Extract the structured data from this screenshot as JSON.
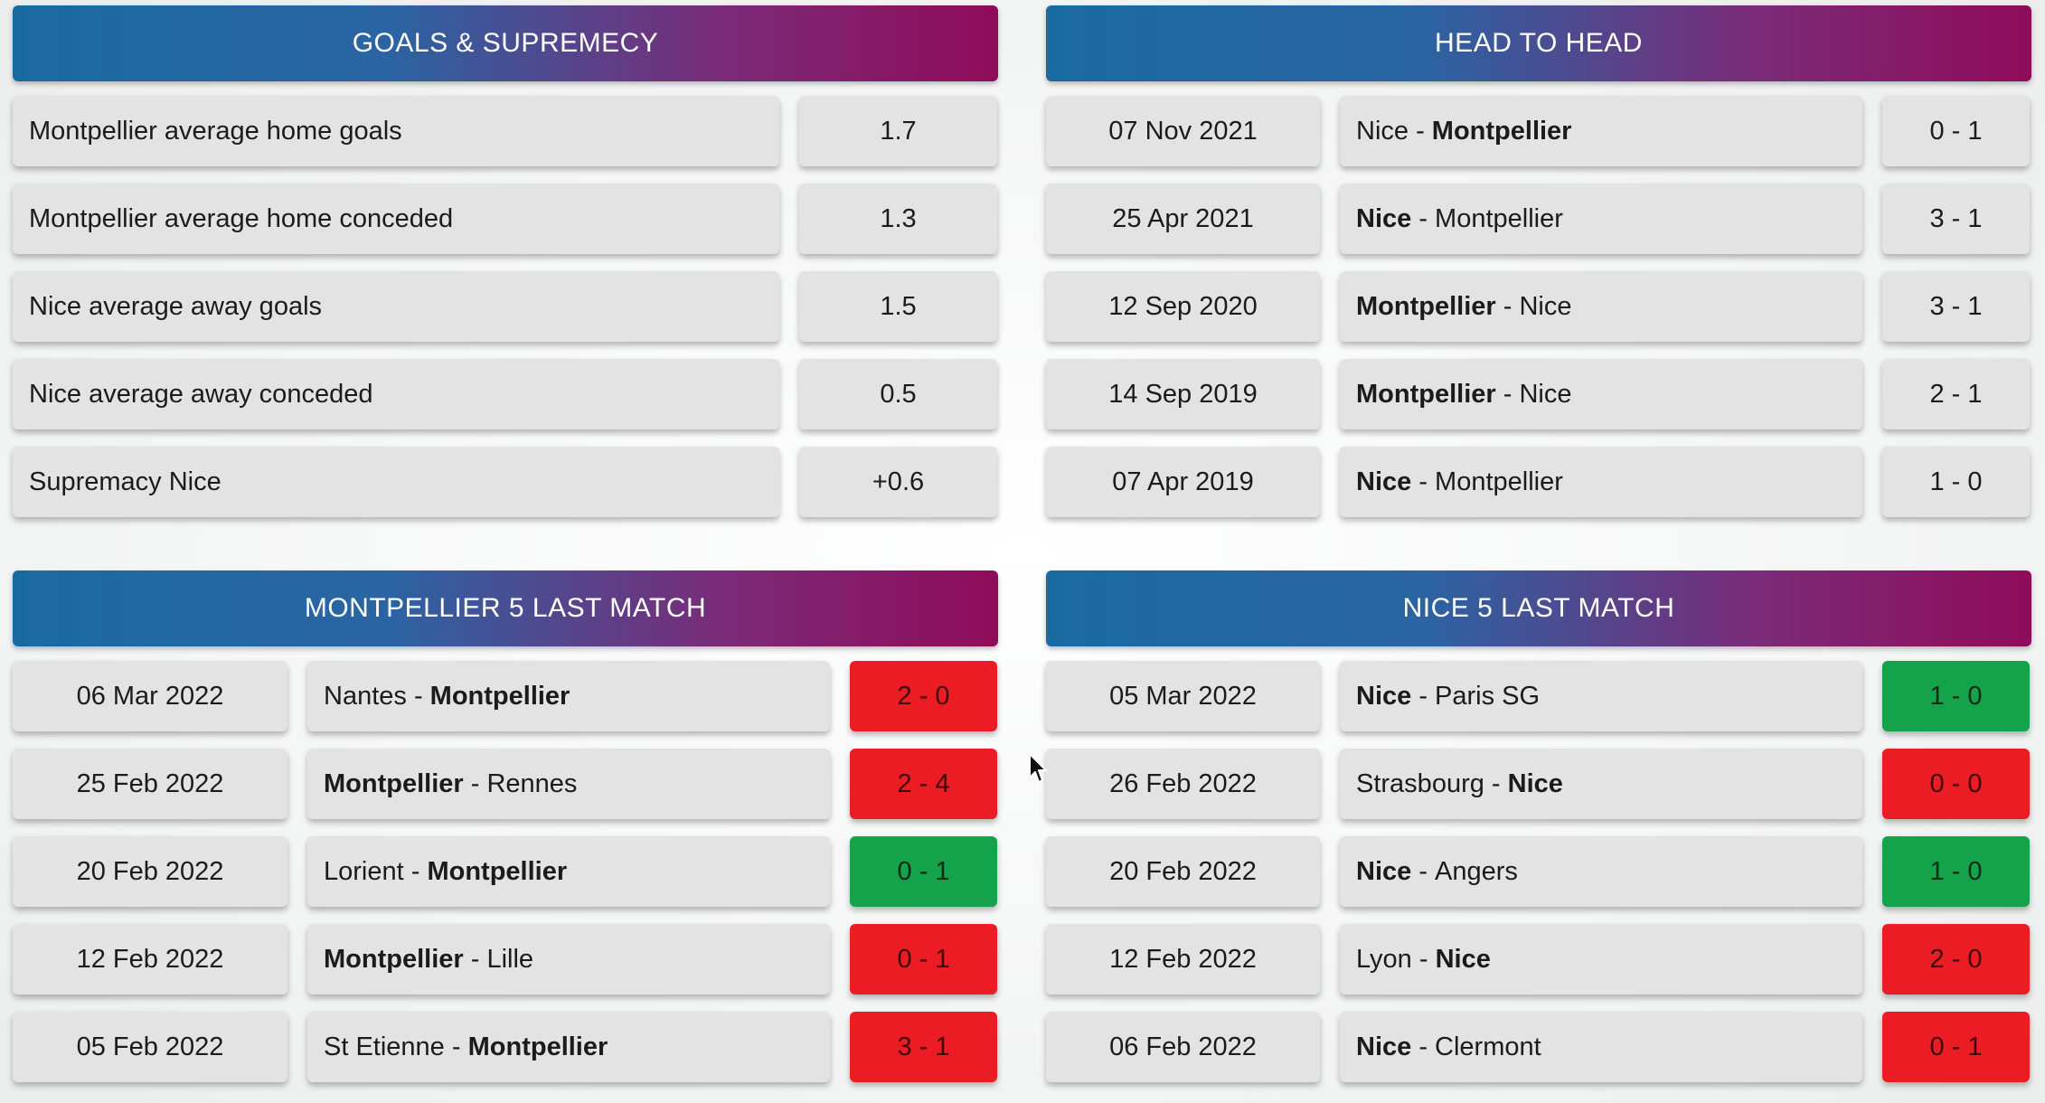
{
  "goals": {
    "title": "GOALS & SUPREMECY",
    "rows": [
      {
        "label": "Montpellier average home goals",
        "value": "1.7"
      },
      {
        "label": "Montpellier average home conceded",
        "value": "1.3"
      },
      {
        "label": "Nice average away goals",
        "value": "1.5"
      },
      {
        "label": "Nice average away conceded",
        "value": "0.5"
      },
      {
        "label": "Supremacy Nice",
        "value": "+0.6"
      }
    ]
  },
  "h2h": {
    "title": "HEAD TO HEAD",
    "rows": [
      {
        "date": "07 Nov 2021",
        "home": "Nice",
        "sep": " - ",
        "away": "Montpellier",
        "bold": "away",
        "score": "0 - 1"
      },
      {
        "date": "25 Apr 2021",
        "home": "Nice",
        "sep": " - ",
        "away": "Montpellier",
        "bold": "home",
        "score": "3 - 1"
      },
      {
        "date": "12 Sep 2020",
        "home": "Montpellier",
        "sep": " - ",
        "away": "Nice",
        "bold": "home",
        "score": "3 - 1"
      },
      {
        "date": "14 Sep 2019",
        "home": "Montpellier",
        "sep": " - ",
        "away": "Nice",
        "bold": "home",
        "score": "2 - 1"
      },
      {
        "date": "07 Apr 2019",
        "home": "Nice",
        "sep": " - ",
        "away": "Montpellier",
        "bold": "home",
        "score": "1 - 0"
      }
    ]
  },
  "montpellier_last": {
    "title": "MONTPELLIER 5 LAST MATCH",
    "rows": [
      {
        "date": "06 Mar 2022",
        "home": "Nantes",
        "sep": " - ",
        "away": "Montpellier",
        "bold": "away",
        "score": "2 - 0",
        "result": "loss"
      },
      {
        "date": "25 Feb 2022",
        "home": "Montpellier",
        "sep": " - ",
        "away": "Rennes",
        "bold": "home",
        "score": "2 - 4",
        "result": "loss"
      },
      {
        "date": "20 Feb 2022",
        "home": "Lorient",
        "sep": " - ",
        "away": "Montpellier",
        "bold": "away",
        "score": "0 - 1",
        "result": "win"
      },
      {
        "date": "12 Feb 2022",
        "home": "Montpellier",
        "sep": " - ",
        "away": "Lille",
        "bold": "home",
        "score": "0 - 1",
        "result": "loss"
      },
      {
        "date": "05 Feb 2022",
        "home": "St Etienne",
        "sep": " - ",
        "away": "Montpellier",
        "bold": "away",
        "score": "3 - 1",
        "result": "loss"
      }
    ]
  },
  "nice_last": {
    "title": "NICE 5 LAST MATCH",
    "rows": [
      {
        "date": "05 Mar 2022",
        "home": "Nice",
        "sep": " - ",
        "away": "Paris SG",
        "bold": "home",
        "score": "1 - 0",
        "result": "win"
      },
      {
        "date": "26 Feb 2022",
        "home": "Strasbourg",
        "sep": " - ",
        "away": "Nice",
        "bold": "away",
        "score": "0 - 0",
        "result": "draw"
      },
      {
        "date": "20 Feb 2022",
        "home": "Nice",
        "sep": " - ",
        "away": "Angers",
        "bold": "home",
        "score": "1 - 0",
        "result": "win"
      },
      {
        "date": "12 Feb 2022",
        "home": "Lyon",
        "sep": " - ",
        "away": "Nice",
        "bold": "away",
        "score": "2 - 0",
        "result": "loss"
      },
      {
        "date": "06 Feb 2022",
        "home": "Nice",
        "sep": " - ",
        "away": "Clermont",
        "bold": "home",
        "score": "0 - 1",
        "result": "loss"
      }
    ]
  },
  "colors": {
    "header_gradient_start": "#1a6aa2",
    "header_gradient_end": "#8f0c5a",
    "cell_background": "#e3e3e4",
    "win": "#14a24a",
    "loss": "#ec1c24"
  },
  "icons": {
    "cursor": "mouse-pointer-icon"
  }
}
